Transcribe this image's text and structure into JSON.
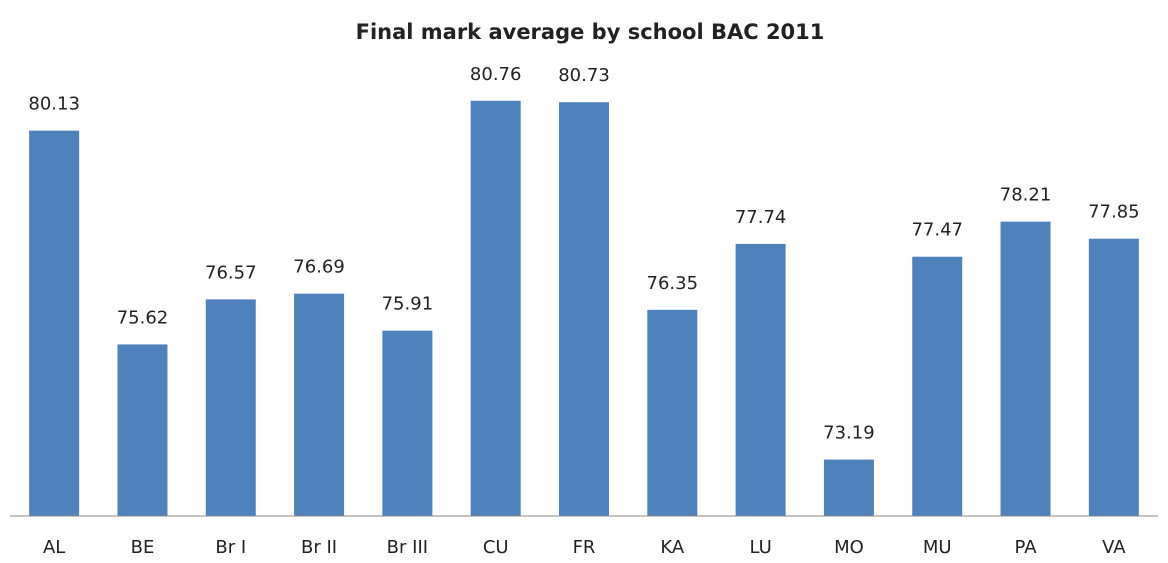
{
  "chart_data": {
    "type": "bar",
    "title": "Final mark average by school BAC 2011",
    "categories": [
      "AL",
      "BE",
      "Br I",
      "Br II",
      "Br III",
      "CU",
      "FR",
      "KA",
      "LU",
      "MO",
      "MU",
      "PA",
      "VA"
    ],
    "values": [
      80.13,
      75.62,
      76.57,
      76.69,
      75.91,
      80.76,
      80.73,
      76.35,
      77.74,
      73.19,
      77.47,
      78.21,
      77.85
    ],
    "color": "#4f81bd",
    "ylim": [
      72,
      82
    ]
  }
}
